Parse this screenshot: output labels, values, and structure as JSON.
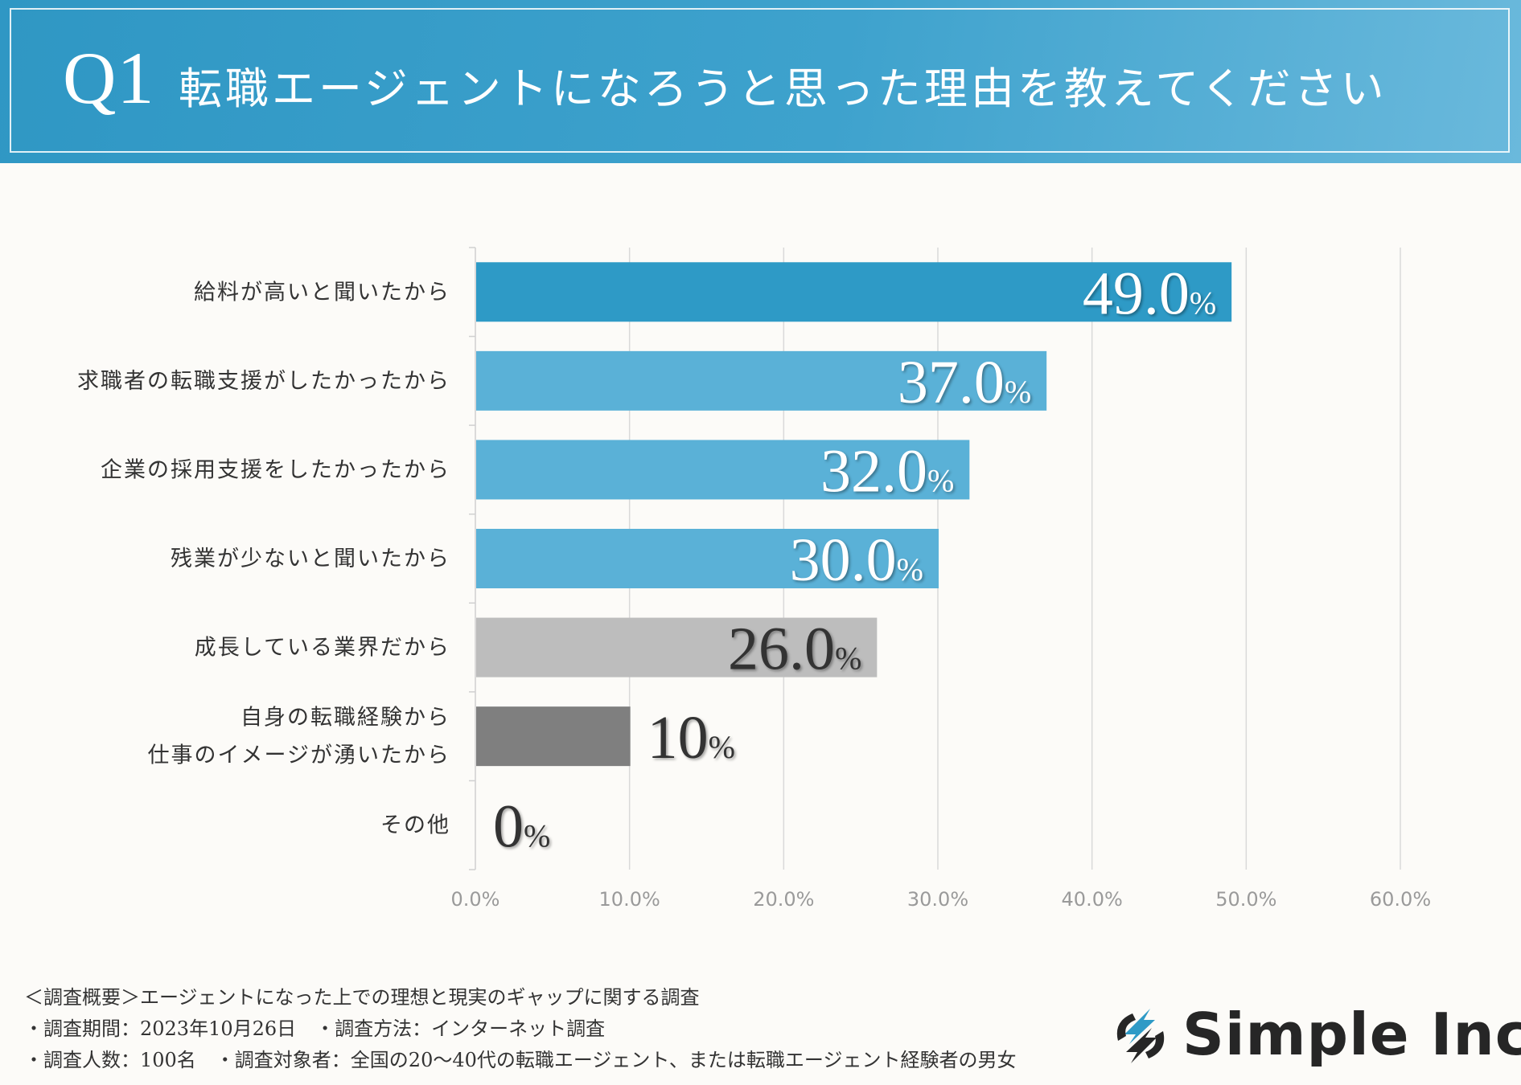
{
  "header": {
    "q_label": "Q1",
    "title": "転職エージェントになろうと思った理由を教えてください"
  },
  "chart_data": {
    "type": "bar",
    "orientation": "horizontal",
    "categories": [
      "給料が高いと聞いたから",
      "求職者の転職支援がしたかったから",
      "企業の採用支援をしたかったから",
      "残業が少ないと聞いたから",
      "成長している業界だから",
      "自身の転職経験から\n仕事のイメージが湧いたから",
      "その他"
    ],
    "values": [
      49.0,
      37.0,
      32.0,
      30.0,
      26.0,
      10,
      0
    ],
    "value_labels": [
      "49.0",
      "37.0",
      "32.0",
      "30.0",
      "26.0",
      "10",
      "0"
    ],
    "value_unit": "%",
    "bar_colors": [
      "#2e9ac6",
      "#5ab1d7",
      "#5ab1d7",
      "#5ab1d7",
      "#bdbdbd",
      "#7f7f7f",
      "#7f7f7f"
    ],
    "label_colors": [
      "#ffffff",
      "#ffffff",
      "#ffffff",
      "#ffffff",
      "#333333",
      "#333333",
      "#333333"
    ],
    "xlim": [
      0,
      60
    ],
    "xticks": [
      0,
      10,
      20,
      30,
      40,
      50,
      60
    ],
    "xtick_labels": [
      "0.0%",
      "10.0%",
      "20.0%",
      "30.0%",
      "40.0%",
      "50.0%",
      "60.0%"
    ],
    "grid": true,
    "title": "",
    "xlabel": "",
    "ylabel": ""
  },
  "footer": {
    "line1": "＜調査概要＞エージェントになった上での理想と現実のギャップに関する調査",
    "line2": "・調査期間：2023年10月26日　・調査方法：インターネット調査",
    "line3": "・調査人数：100名　・調査対象者：全国の20〜40代の転職エージェント、または転職エージェント経験者の男女"
  },
  "brand": {
    "name": "Simple Inc.",
    "accent": "#2e9ac6"
  }
}
